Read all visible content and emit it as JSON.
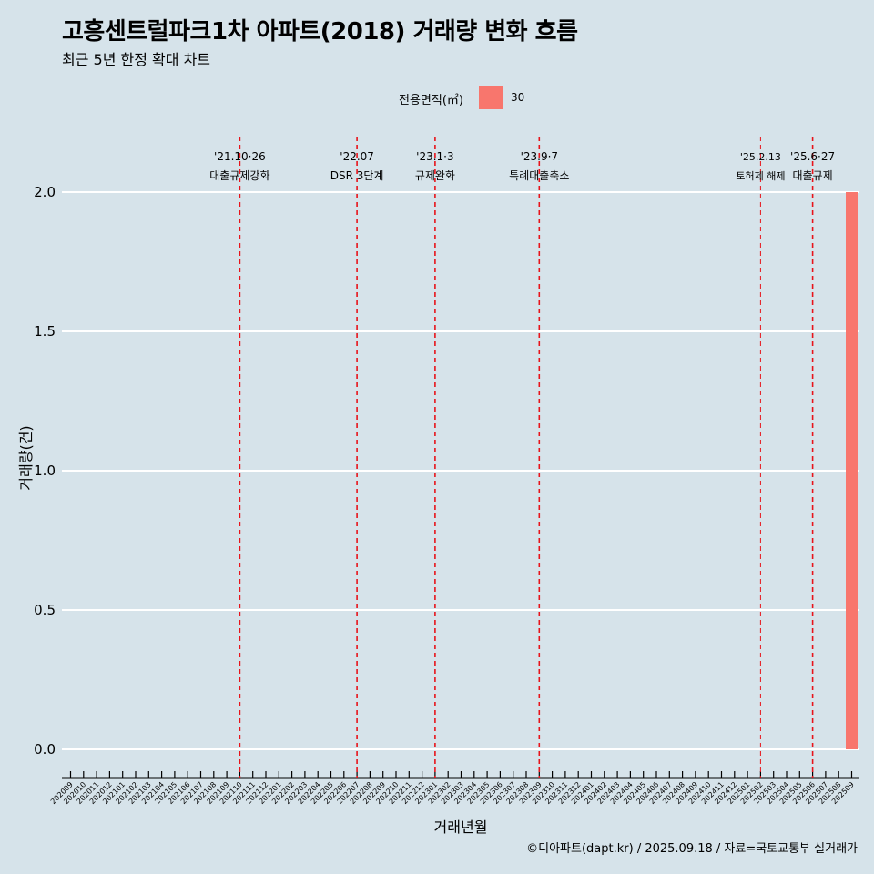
{
  "title": "고흥센트럴파크1차 아파트(2018) 거래량 변화 흐름",
  "subtitle": "최근 5년 한정 확대 차트",
  "caption": "©디아파트(dapt.kr) / 2025.09.18 / 자료=국토교통부 실거래가",
  "legend": {
    "title": "전용면적(㎡)",
    "items": [
      {
        "label": "30",
        "color": "#f8766d"
      }
    ]
  },
  "chart_data": {
    "type": "bar",
    "xlabel": "거래년월",
    "ylabel": "거래량(건)",
    "ylim": [
      0,
      2
    ],
    "yticks": [
      0.0,
      0.5,
      1.0,
      1.5,
      2.0
    ],
    "ytick_labels": [
      "0.0",
      "0.5",
      "1.0",
      "1.5",
      "2.0"
    ],
    "categories": [
      "202009",
      "202010",
      "202011",
      "202012",
      "202101",
      "202102",
      "202103",
      "202104",
      "202105",
      "202106",
      "202107",
      "202108",
      "202109",
      "202110",
      "202111",
      "202112",
      "202201",
      "202202",
      "202203",
      "202204",
      "202205",
      "202206",
      "202207",
      "202208",
      "202209",
      "202210",
      "202211",
      "202212",
      "202301",
      "202302",
      "202303",
      "202304",
      "202305",
      "202306",
      "202307",
      "202308",
      "202309",
      "202310",
      "202311",
      "202312",
      "202401",
      "202402",
      "202403",
      "202404",
      "202405",
      "202406",
      "202407",
      "202408",
      "202409",
      "202410",
      "202411",
      "202412",
      "202501",
      "202502",
      "202503",
      "202504",
      "202505",
      "202506",
      "202507",
      "202508",
      "202509"
    ],
    "series": [
      {
        "name": "30",
        "color": "#f8766d",
        "values": {
          "202509": 2
        }
      }
    ],
    "events": [
      {
        "month": "202110",
        "date": "'21.10·26",
        "label": "대출규제강화",
        "style": "thick"
      },
      {
        "month": "202207",
        "date": "'22.07",
        "label": "DSR 3단계",
        "style": "thick"
      },
      {
        "month": "202301",
        "date": "'23.1·3",
        "label": "규제완화",
        "style": "thick"
      },
      {
        "month": "202309",
        "date": "'23.9·7",
        "label": "특례대출축소",
        "style": "thick"
      },
      {
        "month": "202502",
        "date": "'25.2.13",
        "label": "토허제 해제",
        "style": "thin"
      },
      {
        "month": "202506",
        "date": "'25.6·27",
        "label": "대출규제",
        "style": "thick"
      }
    ],
    "grid": true,
    "legend_position": "top"
  }
}
